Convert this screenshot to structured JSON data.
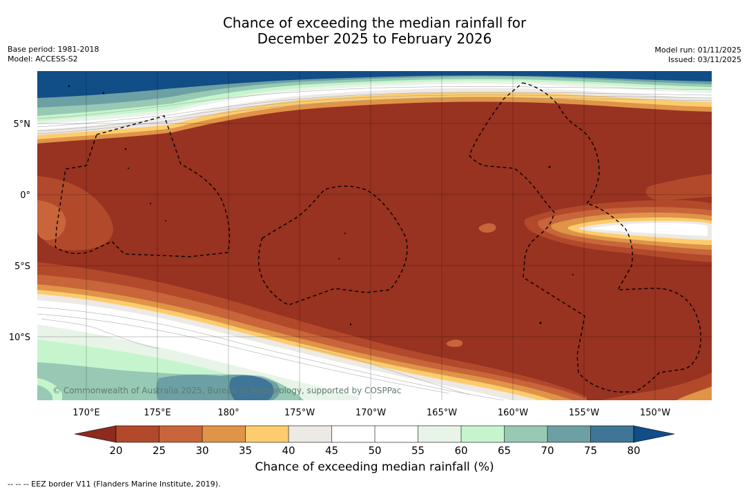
{
  "title": {
    "line1": "Chance of exceeding the median rainfall for",
    "line2": "December 2025 to February 2026"
  },
  "meta": {
    "base_period": "Base period: 1981-2018",
    "model": "Model: ACCESS-S2",
    "model_run": "Model run: 01/11/2025",
    "issued": "Issued: 03/11/2025"
  },
  "map": {
    "copyright": "© Commonwealth of Australia 2025, Bureau of Meteorology, supported by COSPPac",
    "lat_labels": [
      "5°N",
      "0°",
      "5°S",
      "10°S"
    ],
    "lon_labels": [
      "170°E",
      "175°E",
      "180°",
      "175°W",
      "170°W",
      "165°W",
      "160°W",
      "155°W",
      "150°W"
    ],
    "colors": {
      "c_lt20": "#8c2b1e",
      "c20": "#983221",
      "c25": "#b2492b",
      "c30": "#c8653a",
      "c35": "#df9448",
      "c40": "#fdcc6e",
      "c45": "#ede9e5",
      "c50": "#ffffff",
      "c55": "#ffffff",
      "c60": "#e8f4e8",
      "c65": "#c6f5cd",
      "c70": "#98c9b4",
      "c75": "#6da0a4",
      "c80": "#3f7597",
      "c_gt80": "#114d86"
    }
  },
  "colorbar": {
    "ticks": [
      "20",
      "25",
      "30",
      "35",
      "40",
      "45",
      "50",
      "55",
      "60",
      "65",
      "70",
      "75",
      "80"
    ],
    "title": "Chance of exceeding median rainfall (%)"
  },
  "eez_note": "--  --  -- EEZ border V11 (Flanders Marine Institute, 2019)."
}
